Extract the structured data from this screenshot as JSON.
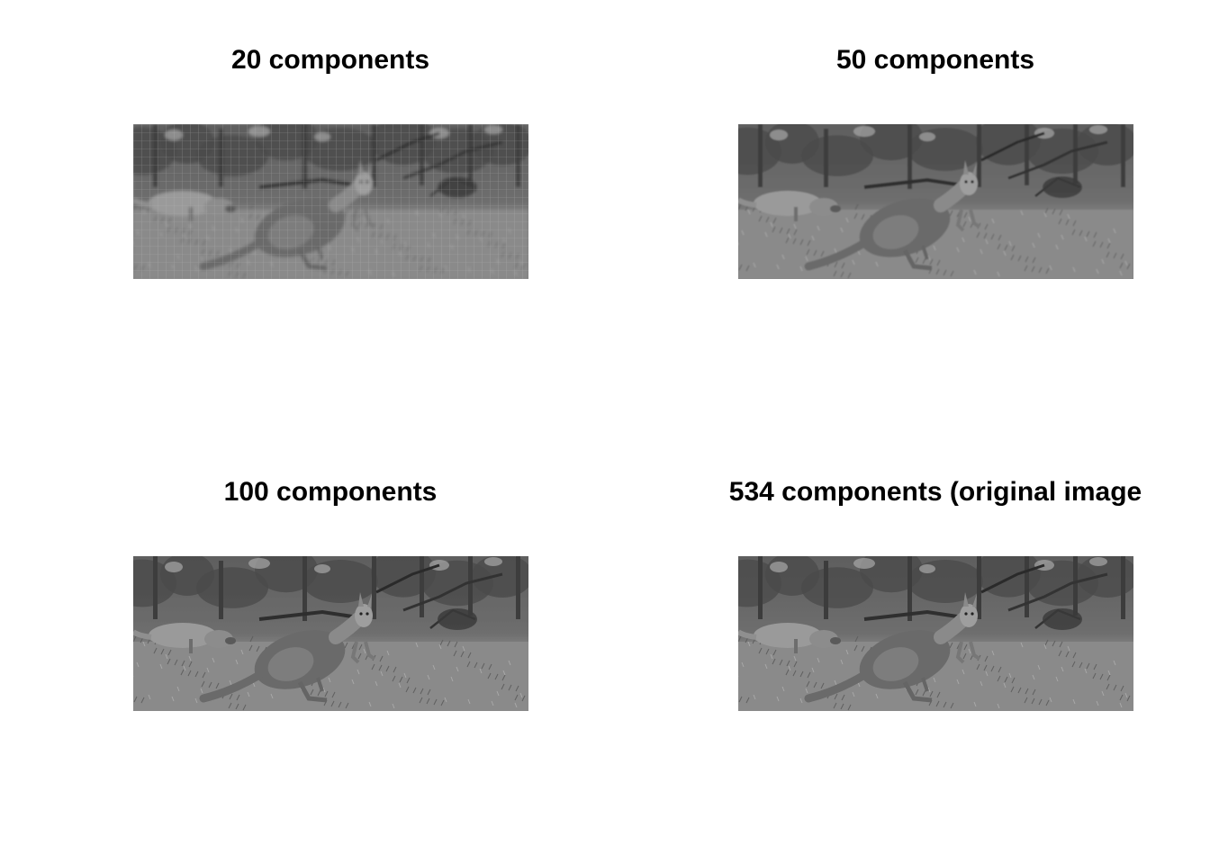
{
  "panels": [
    {
      "title": "20 components",
      "blur": 1.6,
      "grid": true
    },
    {
      "title": "50 components",
      "blur": 0.7,
      "grid": false
    },
    {
      "title": "100 components",
      "blur": 0.25,
      "grid": false
    },
    {
      "title": "534 components (original image",
      "blur": 0,
      "grid": false
    }
  ]
}
